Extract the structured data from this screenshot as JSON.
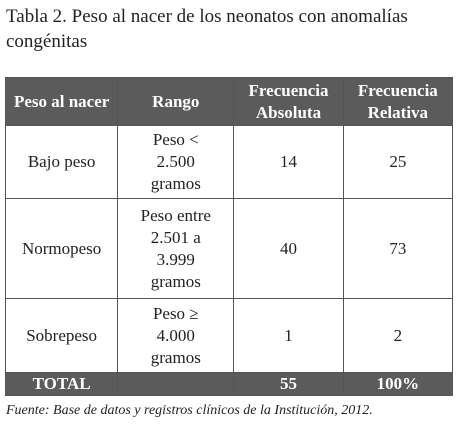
{
  "title": "Tabla 2. Peso al nacer de los neonatos con anomalías congénitas",
  "table": {
    "header": [
      "Peso al nacer",
      "Rango",
      "Frecuencia Absoluta",
      "Frecuencia Relativa"
    ],
    "rows": [
      [
        "Bajo peso",
        "Peso < 2.500 gramos",
        14,
        25
      ],
      [
        "Normopeso",
        "Peso entre 2.501 a 3.999 gramos",
        40,
        73
      ],
      [
        "Sobrepeso",
        "Peso ≥ 4.000 gramos",
        1,
        2
      ]
    ],
    "total": [
      "TOTAL",
      "55",
      "100%"
    ]
  },
  "source": "Fuente: Base de datos y registros clínicos de la Institución, 2012."
}
